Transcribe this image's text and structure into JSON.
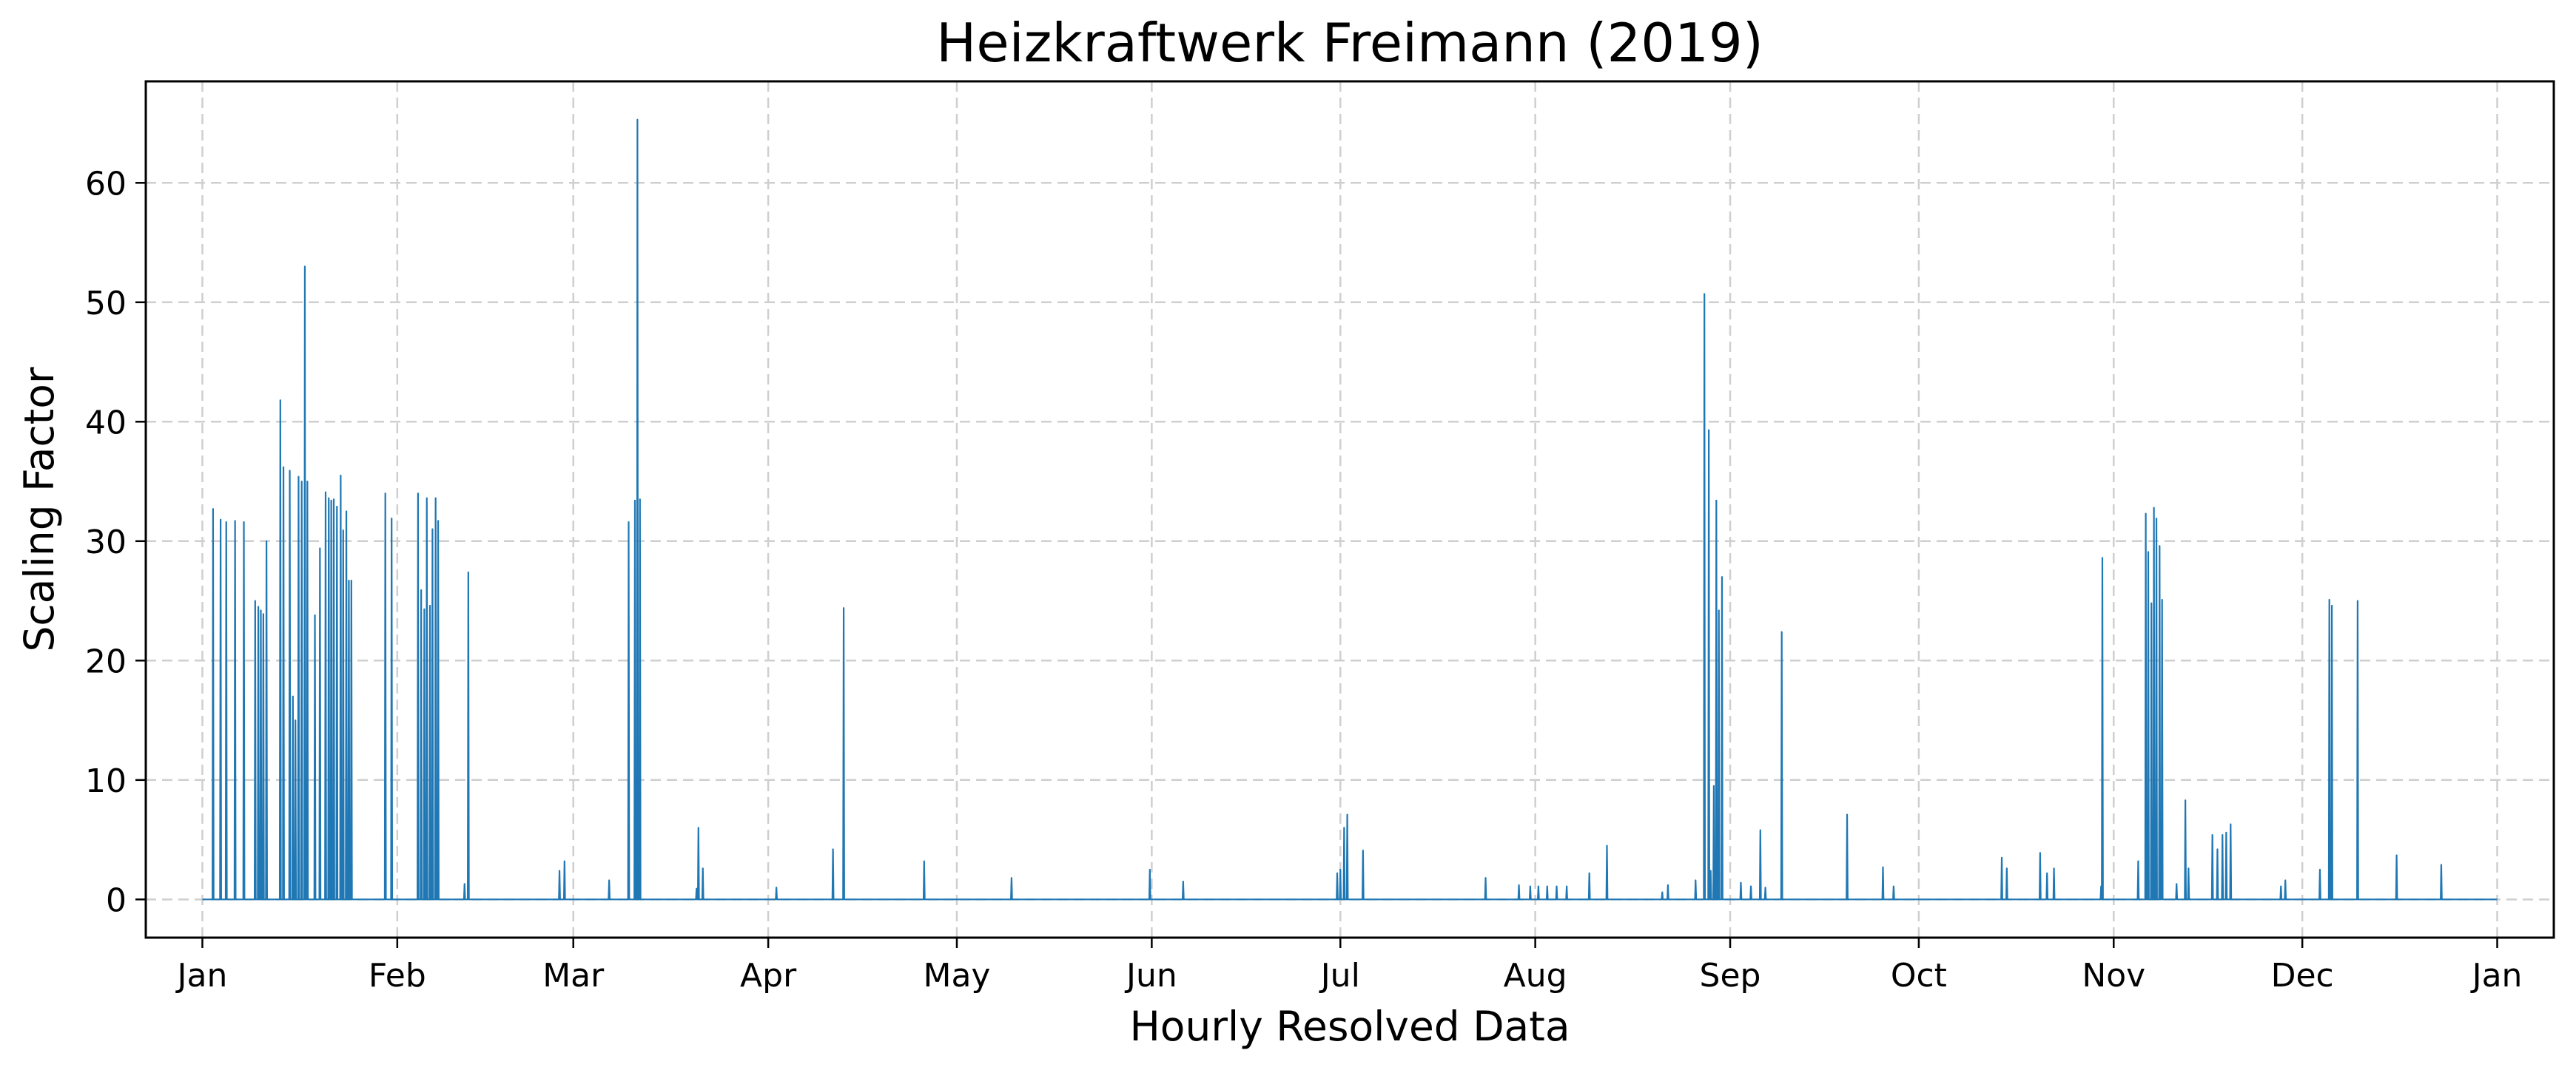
{
  "chart_data": {
    "type": "line",
    "title": "Heizkraftwerk Freimann (2019)",
    "xlabel": "Hourly Resolved Data",
    "ylabel": "Scaling Factor",
    "x_unit": "day_of_year",
    "xlim": [
      -9,
      374
    ],
    "ylim": [
      -3.2,
      68.5
    ],
    "grid": true,
    "x_ticks": [
      {
        "label": "Jan",
        "day": 0
      },
      {
        "label": "Feb",
        "day": 31
      },
      {
        "label": "Mar",
        "day": 59
      },
      {
        "label": "Apr",
        "day": 90
      },
      {
        "label": "May",
        "day": 120
      },
      {
        "label": "Jun",
        "day": 151
      },
      {
        "label": "Jul",
        "day": 181
      },
      {
        "label": "Aug",
        "day": 212
      },
      {
        "label": "Sep",
        "day": 243
      },
      {
        "label": "Oct",
        "day": 273
      },
      {
        "label": "Nov",
        "day": 304
      },
      {
        "label": "Dec",
        "day": 334
      },
      {
        "label": "Jan",
        "day": 365
      }
    ],
    "y_ticks": [
      0,
      10,
      20,
      30,
      40,
      50,
      60
    ],
    "series": [
      {
        "name": "",
        "color": "#1f77b4",
        "spikes": [
          [
            1.7,
            32.7
          ],
          [
            2.9,
            31.8
          ],
          [
            3.8,
            31.6
          ],
          [
            5.2,
            31.7
          ],
          [
            6.6,
            31.6
          ],
          [
            8.4,
            25.0
          ],
          [
            8.9,
            24.5
          ],
          [
            9.3,
            24.2
          ],
          [
            9.7,
            23.9
          ],
          [
            10.2,
            30.0
          ],
          [
            12.4,
            41.8
          ],
          [
            12.9,
            36.2
          ],
          [
            13.9,
            35.9
          ],
          [
            14.4,
            17.0
          ],
          [
            14.8,
            15.0
          ],
          [
            15.3,
            35.4
          ],
          [
            15.8,
            35.0
          ],
          [
            16.3,
            53.0
          ],
          [
            16.7,
            35.0
          ],
          [
            17.9,
            23.8
          ],
          [
            18.7,
            29.4
          ],
          [
            19.6,
            34.1
          ],
          [
            20.1,
            33.6
          ],
          [
            20.5,
            33.4
          ],
          [
            20.9,
            33.5
          ],
          [
            21.4,
            32.9
          ],
          [
            22.0,
            35.5
          ],
          [
            22.4,
            30.9
          ],
          [
            22.9,
            32.5
          ],
          [
            23.3,
            26.7
          ],
          [
            23.7,
            26.7
          ],
          [
            29.1,
            34.0
          ],
          [
            30.1,
            31.9
          ],
          [
            34.3,
            34.0
          ],
          [
            34.8,
            25.9
          ],
          [
            35.3,
            24.3
          ],
          [
            35.7,
            33.6
          ],
          [
            36.2,
            24.6
          ],
          [
            36.6,
            31.0
          ],
          [
            37.1,
            33.6
          ],
          [
            37.5,
            31.7
          ],
          [
            41.7,
            1.3
          ],
          [
            42.3,
            27.4
          ],
          [
            56.8,
            2.4
          ],
          [
            57.6,
            3.2
          ],
          [
            64.7,
            1.6
          ],
          [
            67.8,
            31.6
          ],
          [
            68.8,
            33.4
          ],
          [
            69.2,
            65.3
          ],
          [
            69.6,
            33.5
          ],
          [
            78.6,
            0.9
          ],
          [
            78.9,
            6.0
          ],
          [
            79.6,
            2.6
          ],
          [
            91.3,
            1.0
          ],
          [
            100.3,
            4.2
          ],
          [
            102.0,
            24.4
          ],
          [
            114.8,
            3.2
          ],
          [
            128.7,
            1.8
          ],
          [
            150.7,
            2.5
          ],
          [
            156.0,
            1.5
          ],
          [
            180.5,
            2.2
          ],
          [
            181.0,
            2.5
          ],
          [
            181.6,
            6.0
          ],
          [
            182.1,
            7.1
          ],
          [
            184.6,
            4.1
          ],
          [
            204.1,
            1.8
          ],
          [
            209.4,
            1.2
          ],
          [
            211.2,
            1.1
          ],
          [
            212.5,
            1.1
          ],
          [
            213.9,
            1.1
          ],
          [
            215.4,
            1.1
          ],
          [
            217.0,
            1.1
          ],
          [
            220.6,
            2.2
          ],
          [
            223.4,
            4.5
          ],
          [
            232.2,
            0.6
          ],
          [
            233.1,
            1.2
          ],
          [
            237.5,
            1.6
          ],
          [
            238.9,
            50.7
          ],
          [
            239.6,
            39.3
          ],
          [
            239.9,
            2.4
          ],
          [
            240.4,
            9.5
          ],
          [
            240.8,
            33.4
          ],
          [
            241.2,
            24.2
          ],
          [
            241.7,
            27.0
          ],
          [
            244.7,
            1.4
          ],
          [
            246.3,
            1.1
          ],
          [
            247.8,
            5.8
          ],
          [
            248.6,
            1.0
          ],
          [
            251.2,
            22.4
          ],
          [
            261.6,
            7.1
          ],
          [
            267.3,
            2.7
          ],
          [
            269.0,
            1.1
          ],
          [
            286.2,
            3.5
          ],
          [
            287.0,
            2.6
          ],
          [
            292.3,
            3.9
          ],
          [
            293.4,
            2.2
          ],
          [
            294.5,
            2.6
          ],
          [
            302.0,
            1.1
          ],
          [
            302.2,
            28.6
          ],
          [
            307.9,
            3.2
          ],
          [
            309.1,
            32.3
          ],
          [
            309.5,
            29.1
          ],
          [
            310.0,
            24.8
          ],
          [
            310.4,
            32.8
          ],
          [
            310.8,
            31.9
          ],
          [
            311.3,
            29.6
          ],
          [
            311.7,
            25.1
          ],
          [
            314.0,
            1.3
          ],
          [
            315.4,
            8.3
          ],
          [
            315.9,
            2.6
          ],
          [
            319.7,
            5.4
          ],
          [
            320.5,
            4.2
          ],
          [
            321.3,
            5.4
          ],
          [
            321.9,
            5.6
          ],
          [
            322.6,
            6.3
          ],
          [
            330.6,
            1.1
          ],
          [
            331.3,
            1.6
          ],
          [
            336.8,
            2.5
          ],
          [
            338.3,
            25.1
          ],
          [
            338.7,
            24.6
          ],
          [
            342.8,
            25.0
          ],
          [
            349.0,
            3.7
          ],
          [
            356.1,
            2.9
          ]
        ]
      }
    ]
  }
}
